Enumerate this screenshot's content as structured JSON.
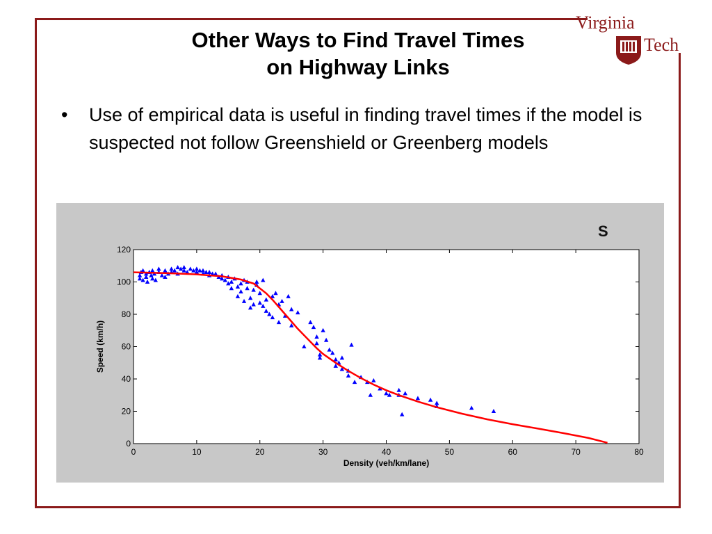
{
  "slide": {
    "title_line1": "Other Ways to Find Travel Times",
    "title_line2": "on Highway Links",
    "bullet_symbol": "•",
    "bullet_text": "Use of empirical data is useful in finding travel times if the model is suspected not follow Greenshield or Greenberg models",
    "logo_word_1": "Virginia",
    "logo_word_2": "Tech",
    "cut_off_glyph": "S",
    "colors": {
      "frame": "#8b1a1a",
      "logo": "#8b1a1a",
      "panel": "#c8c8c8"
    }
  },
  "chart_data": {
    "type": "scatter",
    "xlabel": "Density (veh/km/lane)",
    "ylabel": "Speed (km/h)",
    "xlim": [
      0,
      80
    ],
    "ylim": [
      0,
      120
    ],
    "xticks": [
      0,
      10,
      20,
      30,
      40,
      50,
      60,
      70,
      80
    ],
    "yticks": [
      0,
      20,
      40,
      60,
      80,
      100,
      120
    ],
    "grid": false,
    "series": [
      {
        "kind": "scatter",
        "marker": "triangle",
        "color": "#0000ff",
        "points": [
          [
            1,
            104
          ],
          [
            1,
            102
          ],
          [
            1.2,
            106
          ],
          [
            1.5,
            101
          ],
          [
            1.5,
            107
          ],
          [
            2,
            103
          ],
          [
            2,
            105
          ],
          [
            2.2,
            100
          ],
          [
            2.5,
            106
          ],
          [
            2.8,
            104
          ],
          [
            3,
            102
          ],
          [
            3,
            107
          ],
          [
            3.3,
            105
          ],
          [
            3.5,
            101
          ],
          [
            4,
            106
          ],
          [
            4,
            108
          ],
          [
            4.5,
            104
          ],
          [
            5,
            107
          ],
          [
            5,
            103
          ],
          [
            5.5,
            105
          ],
          [
            6,
            108
          ],
          [
            6,
            106
          ],
          [
            6.5,
            107
          ],
          [
            7,
            109
          ],
          [
            7,
            105
          ],
          [
            7.5,
            108
          ],
          [
            8,
            107
          ],
          [
            8,
            109
          ],
          [
            8.5,
            106
          ],
          [
            9,
            108
          ],
          [
            9.5,
            107
          ],
          [
            10,
            106
          ],
          [
            10,
            108
          ],
          [
            10.5,
            107
          ],
          [
            11,
            105
          ],
          [
            11,
            107
          ],
          [
            11.5,
            106
          ],
          [
            12,
            104
          ],
          [
            12,
            106
          ],
          [
            12.5,
            105
          ],
          [
            13,
            105
          ],
          [
            13.5,
            103
          ],
          [
            14,
            104
          ],
          [
            14,
            102
          ],
          [
            14.5,
            101
          ],
          [
            15,
            103
          ],
          [
            15,
            99
          ],
          [
            15.5,
            100
          ],
          [
            15.5,
            96
          ],
          [
            16,
            102
          ],
          [
            16.5,
            97
          ],
          [
            16.5,
            91
          ],
          [
            17,
            99
          ],
          [
            17,
            94
          ],
          [
            17.5,
            88
          ],
          [
            17.5,
            101
          ],
          [
            18,
            100
          ],
          [
            18,
            96
          ],
          [
            18.5,
            90
          ],
          [
            18.5,
            84
          ],
          [
            19,
            95
          ],
          [
            19,
            86
          ],
          [
            19.5,
            98
          ],
          [
            19.5,
            100
          ],
          [
            20,
            93
          ],
          [
            20,
            87
          ],
          [
            20.5,
            85
          ],
          [
            20.5,
            101
          ],
          [
            21,
            82
          ],
          [
            21,
            89
          ],
          [
            21.5,
            80
          ],
          [
            22,
            91
          ],
          [
            22,
            78
          ],
          [
            22.5,
            93
          ],
          [
            23,
            86
          ],
          [
            23,
            75
          ],
          [
            23.5,
            88
          ],
          [
            24,
            79
          ],
          [
            24.5,
            91
          ],
          [
            25,
            83
          ],
          [
            25,
            73
          ],
          [
            26,
            81
          ],
          [
            27,
            60
          ],
          [
            28,
            75
          ],
          [
            28.5,
            72
          ],
          [
            29,
            66
          ],
          [
            29,
            62
          ],
          [
            29.5,
            55
          ],
          [
            29.5,
            53
          ],
          [
            30,
            70
          ],
          [
            30.5,
            64
          ],
          [
            31,
            58
          ],
          [
            31.5,
            56
          ],
          [
            32,
            52
          ],
          [
            32,
            48
          ],
          [
            32.5,
            50
          ],
          [
            33,
            53
          ],
          [
            33,
            46
          ],
          [
            34,
            45
          ],
          [
            34,
            42
          ],
          [
            34.5,
            61
          ],
          [
            35,
            38
          ],
          [
            36,
            41
          ],
          [
            37,
            38
          ],
          [
            37.5,
            30
          ],
          [
            38,
            39
          ],
          [
            39,
            34
          ],
          [
            40,
            31
          ],
          [
            40.5,
            30
          ],
          [
            42,
            33
          ],
          [
            42,
            30
          ],
          [
            42.5,
            18
          ],
          [
            43,
            31
          ],
          [
            45,
            28
          ],
          [
            47,
            27
          ],
          [
            48,
            25
          ],
          [
            48,
            23
          ],
          [
            53.5,
            22
          ],
          [
            57,
            20
          ]
        ]
      },
      {
        "kind": "line",
        "color": "#ff0000",
        "points": [
          [
            0,
            106
          ],
          [
            5,
            105.5
          ],
          [
            10,
            104.7
          ],
          [
            14,
            103.5
          ],
          [
            17,
            101.5
          ],
          [
            19,
            99
          ],
          [
            20,
            96
          ],
          [
            21,
            93
          ],
          [
            22,
            89
          ],
          [
            23,
            84.5
          ],
          [
            24,
            80
          ],
          [
            25,
            75.5
          ],
          [
            26,
            71
          ],
          [
            27,
            67
          ],
          [
            28,
            63
          ],
          [
            29,
            59
          ],
          [
            30,
            55.5
          ],
          [
            32,
            50
          ],
          [
            34,
            45
          ],
          [
            36,
            40.5
          ],
          [
            38,
            36.5
          ],
          [
            40,
            33
          ],
          [
            42,
            30
          ],
          [
            45,
            26
          ],
          [
            48,
            22.5
          ],
          [
            52,
            18.5
          ],
          [
            56,
            15
          ],
          [
            60,
            12
          ],
          [
            64,
            9.3
          ],
          [
            68,
            6.5
          ],
          [
            72,
            3.5
          ],
          [
            75,
            0.5
          ]
        ]
      }
    ]
  }
}
